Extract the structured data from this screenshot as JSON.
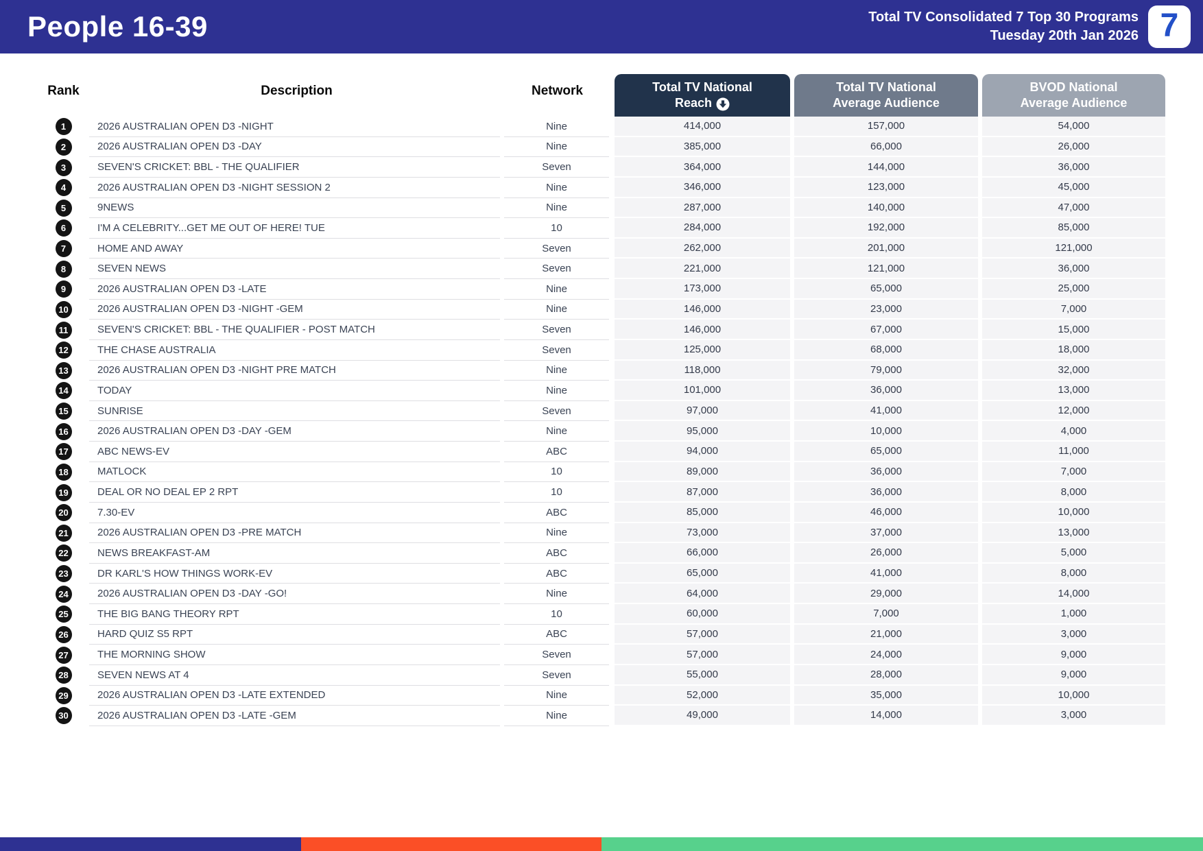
{
  "header": {
    "title": "People 16-39",
    "subtitle_line1": "Total TV Consolidated 7 Top 30 Programs",
    "subtitle_line2": "Tuesday 20th Jan 2026",
    "logo_text": "7",
    "bar_color": "#2E3192"
  },
  "table": {
    "headers": {
      "rank": "Rank",
      "description": "Description",
      "network": "Network",
      "reach_line1": "Total TV National",
      "reach_line2": "Reach",
      "reach_sort_icon": "circle-arrow-down-icon",
      "avg_line1": "Total TV National",
      "avg_line2": "Average Audience",
      "bvod_line1": "BVOD National",
      "bvod_line2": "Average Audience"
    },
    "header_colors": {
      "reach": "#21334B",
      "avg": "#6F7A8B",
      "bvod": "#9DA5B1"
    },
    "rows": [
      {
        "rank": 1,
        "description": "2026 AUSTRALIAN OPEN D3 -NIGHT",
        "network": "Nine",
        "reach": "414,000",
        "avg_audience": "157,000",
        "bvod_audience": "54,000"
      },
      {
        "rank": 2,
        "description": "2026 AUSTRALIAN OPEN D3 -DAY",
        "network": "Nine",
        "reach": "385,000",
        "avg_audience": "66,000",
        "bvod_audience": "26,000"
      },
      {
        "rank": 3,
        "description": "SEVEN'S CRICKET: BBL - THE QUALIFIER",
        "network": "Seven",
        "reach": "364,000",
        "avg_audience": "144,000",
        "bvod_audience": "36,000"
      },
      {
        "rank": 4,
        "description": "2026 AUSTRALIAN OPEN D3 -NIGHT SESSION 2",
        "network": "Nine",
        "reach": "346,000",
        "avg_audience": "123,000",
        "bvod_audience": "45,000"
      },
      {
        "rank": 5,
        "description": "9NEWS",
        "network": "Nine",
        "reach": "287,000",
        "avg_audience": "140,000",
        "bvod_audience": "47,000"
      },
      {
        "rank": 6,
        "description": "I'M A CELEBRITY...GET ME OUT OF HERE! TUE",
        "network": "10",
        "reach": "284,000",
        "avg_audience": "192,000",
        "bvod_audience": "85,000"
      },
      {
        "rank": 7,
        "description": "HOME AND AWAY",
        "network": "Seven",
        "reach": "262,000",
        "avg_audience": "201,000",
        "bvod_audience": "121,000"
      },
      {
        "rank": 8,
        "description": "SEVEN NEWS",
        "network": "Seven",
        "reach": "221,000",
        "avg_audience": "121,000",
        "bvod_audience": "36,000"
      },
      {
        "rank": 9,
        "description": "2026 AUSTRALIAN OPEN D3 -LATE",
        "network": "Nine",
        "reach": "173,000",
        "avg_audience": "65,000",
        "bvod_audience": "25,000"
      },
      {
        "rank": 10,
        "description": "2026 AUSTRALIAN OPEN D3 -NIGHT -GEM",
        "network": "Nine",
        "reach": "146,000",
        "avg_audience": "23,000",
        "bvod_audience": "7,000"
      },
      {
        "rank": 11,
        "description": "SEVEN'S CRICKET: BBL - THE QUALIFIER - POST MATCH",
        "network": "Seven",
        "reach": "146,000",
        "avg_audience": "67,000",
        "bvod_audience": "15,000"
      },
      {
        "rank": 12,
        "description": "THE CHASE AUSTRALIA",
        "network": "Seven",
        "reach": "125,000",
        "avg_audience": "68,000",
        "bvod_audience": "18,000"
      },
      {
        "rank": 13,
        "description": "2026 AUSTRALIAN OPEN D3 -NIGHT PRE MATCH",
        "network": "Nine",
        "reach": "118,000",
        "avg_audience": "79,000",
        "bvod_audience": "32,000"
      },
      {
        "rank": 14,
        "description": "TODAY",
        "network": "Nine",
        "reach": "101,000",
        "avg_audience": "36,000",
        "bvod_audience": "13,000"
      },
      {
        "rank": 15,
        "description": "SUNRISE",
        "network": "Seven",
        "reach": "97,000",
        "avg_audience": "41,000",
        "bvod_audience": "12,000"
      },
      {
        "rank": 16,
        "description": "2026 AUSTRALIAN OPEN D3 -DAY -GEM",
        "network": "Nine",
        "reach": "95,000",
        "avg_audience": "10,000",
        "bvod_audience": "4,000"
      },
      {
        "rank": 17,
        "description": "ABC NEWS-EV",
        "network": "ABC",
        "reach": "94,000",
        "avg_audience": "65,000",
        "bvod_audience": "11,000"
      },
      {
        "rank": 18,
        "description": "MATLOCK",
        "network": "10",
        "reach": "89,000",
        "avg_audience": "36,000",
        "bvod_audience": "7,000"
      },
      {
        "rank": 19,
        "description": "DEAL OR NO DEAL EP 2 RPT",
        "network": "10",
        "reach": "87,000",
        "avg_audience": "36,000",
        "bvod_audience": "8,000"
      },
      {
        "rank": 20,
        "description": "7.30-EV",
        "network": "ABC",
        "reach": "85,000",
        "avg_audience": "46,000",
        "bvod_audience": "10,000"
      },
      {
        "rank": 21,
        "description": "2026 AUSTRALIAN OPEN D3 -PRE MATCH",
        "network": "Nine",
        "reach": "73,000",
        "avg_audience": "37,000",
        "bvod_audience": "13,000"
      },
      {
        "rank": 22,
        "description": "NEWS BREAKFAST-AM",
        "network": "ABC",
        "reach": "66,000",
        "avg_audience": "26,000",
        "bvod_audience": "5,000"
      },
      {
        "rank": 23,
        "description": "DR KARL'S HOW THINGS WORK-EV",
        "network": "ABC",
        "reach": "65,000",
        "avg_audience": "41,000",
        "bvod_audience": "8,000"
      },
      {
        "rank": 24,
        "description": "2026 AUSTRALIAN OPEN D3 -DAY -GO!",
        "network": "Nine",
        "reach": "64,000",
        "avg_audience": "29,000",
        "bvod_audience": "14,000"
      },
      {
        "rank": 25,
        "description": "THE BIG BANG THEORY RPT",
        "network": "10",
        "reach": "60,000",
        "avg_audience": "7,000",
        "bvod_audience": "1,000"
      },
      {
        "rank": 26,
        "description": "HARD QUIZ S5 RPT",
        "network": "ABC",
        "reach": "57,000",
        "avg_audience": "21,000",
        "bvod_audience": "3,000"
      },
      {
        "rank": 27,
        "description": "THE MORNING SHOW",
        "network": "Seven",
        "reach": "57,000",
        "avg_audience": "24,000",
        "bvod_audience": "9,000"
      },
      {
        "rank": 28,
        "description": "SEVEN NEWS AT 4",
        "network": "Seven",
        "reach": "55,000",
        "avg_audience": "28,000",
        "bvod_audience": "9,000"
      },
      {
        "rank": 29,
        "description": "2026 AUSTRALIAN OPEN D3 -LATE EXTENDED",
        "network": "Nine",
        "reach": "52,000",
        "avg_audience": "35,000",
        "bvod_audience": "10,000"
      },
      {
        "rank": 30,
        "description": "2026 AUSTRALIAN OPEN D3 -LATE -GEM",
        "network": "Nine",
        "reach": "49,000",
        "avg_audience": "14,000",
        "bvod_audience": "3,000"
      }
    ]
  },
  "footer_bar": {
    "segments": [
      {
        "color": "#2E3192",
        "width_pct": 25
      },
      {
        "color": "#FB4F26",
        "width_pct": 25
      },
      {
        "color": "#57D18C",
        "width_pct": 50
      }
    ]
  }
}
